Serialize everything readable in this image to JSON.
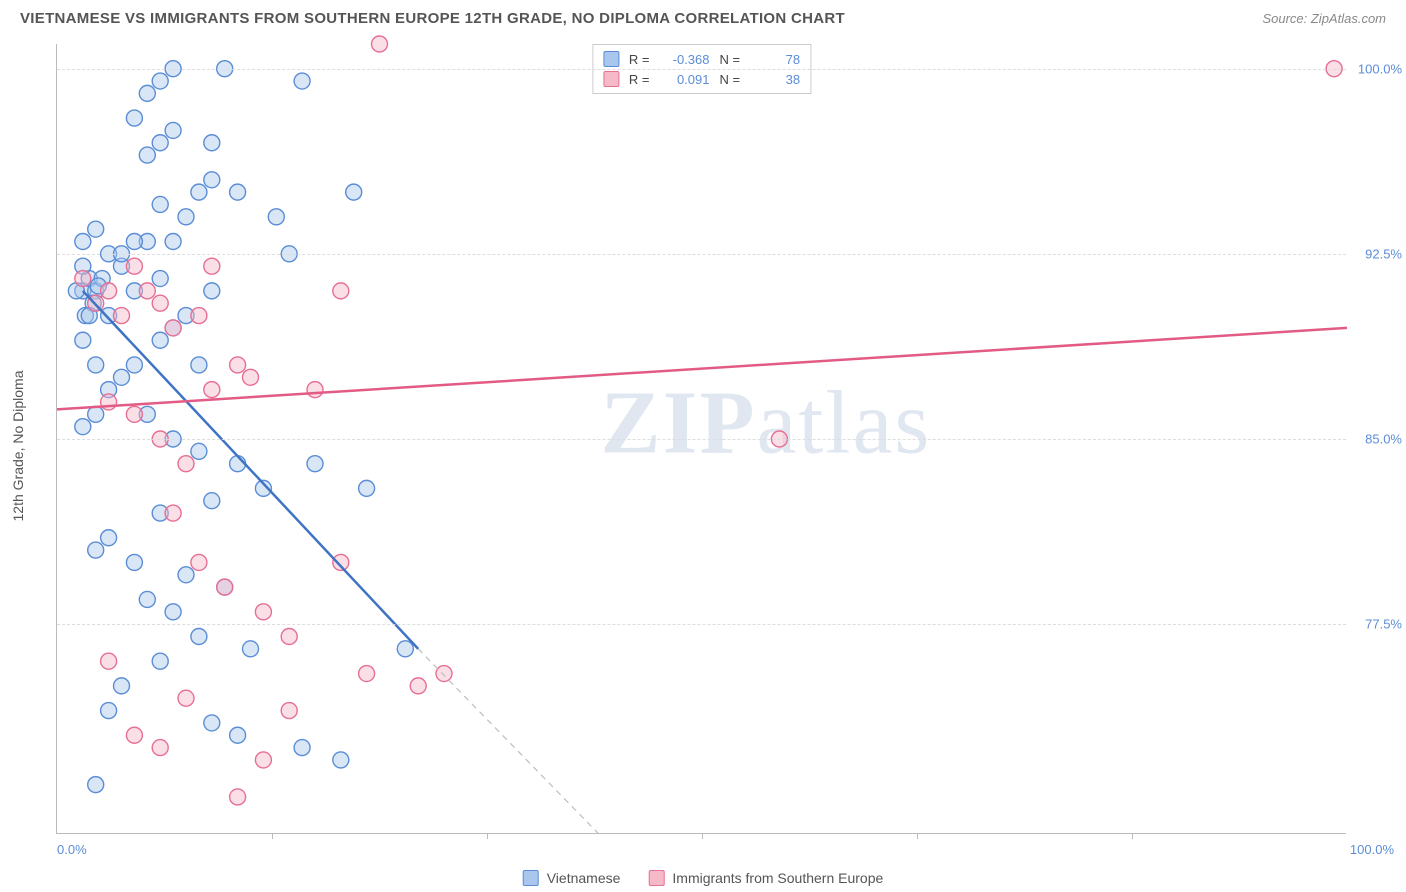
{
  "header": {
    "title": "VIETNAMESE VS IMMIGRANTS FROM SOUTHERN EUROPE 12TH GRADE, NO DIPLOMA CORRELATION CHART",
    "source": "Source: ZipAtlas.com"
  },
  "axes": {
    "y_title": "12th Grade, No Diploma",
    "x_left": "0.0%",
    "x_right": "100.0%",
    "x_min": 0,
    "x_max": 100,
    "y_min": 69,
    "y_max": 101,
    "y_ticks": [
      {
        "v": 100.0,
        "label": "100.0%"
      },
      {
        "v": 92.5,
        "label": "92.5%"
      },
      {
        "v": 85.0,
        "label": "85.0%"
      },
      {
        "v": 77.5,
        "label": "77.5%"
      }
    ],
    "x_tick_positions": [
      16.7,
      33.3,
      50.0,
      66.7,
      83.3
    ]
  },
  "colors": {
    "blue_fill": "#a9c7ec",
    "blue_stroke": "#5b8dd6",
    "pink_fill": "#f5b9c8",
    "pink_stroke": "#e76f94",
    "blue_line": "#3f73c4",
    "pink_line": "#e35b85",
    "dash_line": "#bdbdbd",
    "grid": "#dddddd",
    "tick_text": "#5b8dd6",
    "watermark": "#c8d4e6"
  },
  "stats_legend": {
    "rows": [
      {
        "swatch": "blue",
        "R_label": "R =",
        "R": "-0.368",
        "N_label": "N =",
        "N": "78"
      },
      {
        "swatch": "pink",
        "R_label": "R =",
        "R": "0.091",
        "N_label": "N =",
        "N": "38"
      }
    ]
  },
  "bottom_legend": {
    "items": [
      {
        "swatch": "blue",
        "label": "Vietnamese"
      },
      {
        "swatch": "pink",
        "label": "Immigrants from Southern Europe"
      }
    ]
  },
  "watermark": {
    "zip": "ZIP",
    "atlas": "atlas"
  },
  "series": {
    "blue": {
      "points": [
        [
          2,
          91
        ],
        [
          2.5,
          91.5
        ],
        [
          3,
          91
        ],
        [
          3.5,
          91.5
        ],
        [
          2.8,
          90.5
        ],
        [
          2.2,
          90
        ],
        [
          3.2,
          91.2
        ],
        [
          2,
          93
        ],
        [
          3,
          93.5
        ],
        [
          4,
          92.5
        ],
        [
          5,
          92
        ],
        [
          6,
          91
        ],
        [
          7,
          93
        ],
        [
          8,
          91.5
        ],
        [
          9,
          93
        ],
        [
          10,
          94
        ],
        [
          11,
          95
        ],
        [
          12,
          95.5
        ],
        [
          7,
          96.5
        ],
        [
          8,
          97
        ],
        [
          9,
          97.5
        ],
        [
          6,
          98
        ],
        [
          7,
          99
        ],
        [
          8,
          99.5
        ],
        [
          9,
          100
        ],
        [
          12,
          97
        ],
        [
          13,
          100
        ],
        [
          14,
          95
        ],
        [
          17,
          94
        ],
        [
          18,
          92.5
        ],
        [
          19,
          99.5
        ],
        [
          12,
          91
        ],
        [
          10,
          90
        ],
        [
          9,
          89.5
        ],
        [
          8,
          89
        ],
        [
          11,
          88
        ],
        [
          6,
          88
        ],
        [
          5,
          87.5
        ],
        [
          4,
          87
        ],
        [
          7,
          86
        ],
        [
          3,
          86
        ],
        [
          2,
          85.5
        ],
        [
          9,
          85
        ],
        [
          11,
          84.5
        ],
        [
          14,
          84
        ],
        [
          16,
          83
        ],
        [
          12,
          82.5
        ],
        [
          8,
          82
        ],
        [
          4,
          81
        ],
        [
          3,
          80.5
        ],
        [
          6,
          80
        ],
        [
          10,
          79.5
        ],
        [
          13,
          79
        ],
        [
          7,
          78.5
        ],
        [
          9,
          78
        ],
        [
          11,
          77
        ],
        [
          15,
          76.5
        ],
        [
          8,
          76
        ],
        [
          5,
          75
        ],
        [
          4,
          74
        ],
        [
          12,
          73.5
        ],
        [
          14,
          73
        ],
        [
          19,
          72.5
        ],
        [
          22,
          72
        ],
        [
          20,
          84
        ],
        [
          24,
          83
        ],
        [
          27,
          76.5
        ],
        [
          23,
          95
        ],
        [
          4,
          90
        ],
        [
          2,
          89
        ],
        [
          3,
          88
        ],
        [
          5,
          92.5
        ],
        [
          6,
          93
        ],
        [
          8,
          94.5
        ],
        [
          3,
          71
        ],
        [
          2,
          92
        ],
        [
          1.5,
          91
        ],
        [
          2.5,
          90
        ]
      ],
      "trend": {
        "x1": 2,
        "y1": 91,
        "x2": 28,
        "y2": 76.5
      },
      "trend_dash": {
        "x1": 28,
        "y1": 76.5,
        "x2": 42,
        "y2": 69
      }
    },
    "pink": {
      "points": [
        [
          2,
          91.5
        ],
        [
          3,
          90.5
        ],
        [
          4,
          91
        ],
        [
          5,
          90
        ],
        [
          6,
          92
        ],
        [
          7,
          91
        ],
        [
          8,
          90.5
        ],
        [
          9,
          89.5
        ],
        [
          11,
          90
        ],
        [
          12,
          92
        ],
        [
          14,
          88
        ],
        [
          22,
          91
        ],
        [
          25,
          101
        ],
        [
          4,
          86.5
        ],
        [
          6,
          86
        ],
        [
          8,
          85
        ],
        [
          10,
          84
        ],
        [
          12,
          87
        ],
        [
          15,
          87.5
        ],
        [
          9,
          82
        ],
        [
          11,
          80
        ],
        [
          13,
          79
        ],
        [
          16,
          78
        ],
        [
          18,
          77
        ],
        [
          22,
          80
        ],
        [
          24,
          75.5
        ],
        [
          28,
          75
        ],
        [
          30,
          75.5
        ],
        [
          18,
          74
        ],
        [
          16,
          72
        ],
        [
          14,
          70.5
        ],
        [
          10,
          74.5
        ],
        [
          8,
          72.5
        ],
        [
          6,
          73
        ],
        [
          4,
          76
        ],
        [
          56,
          85
        ],
        [
          99,
          100
        ],
        [
          20,
          87
        ]
      ],
      "trend": {
        "x1": 0,
        "y1": 86.2,
        "x2": 100,
        "y2": 89.5
      }
    }
  },
  "marker": {
    "radius": 8,
    "fill_opacity": 0.45,
    "stroke_width": 1.4
  },
  "line_style": {
    "width": 2.5,
    "dash_width": 1.2
  }
}
